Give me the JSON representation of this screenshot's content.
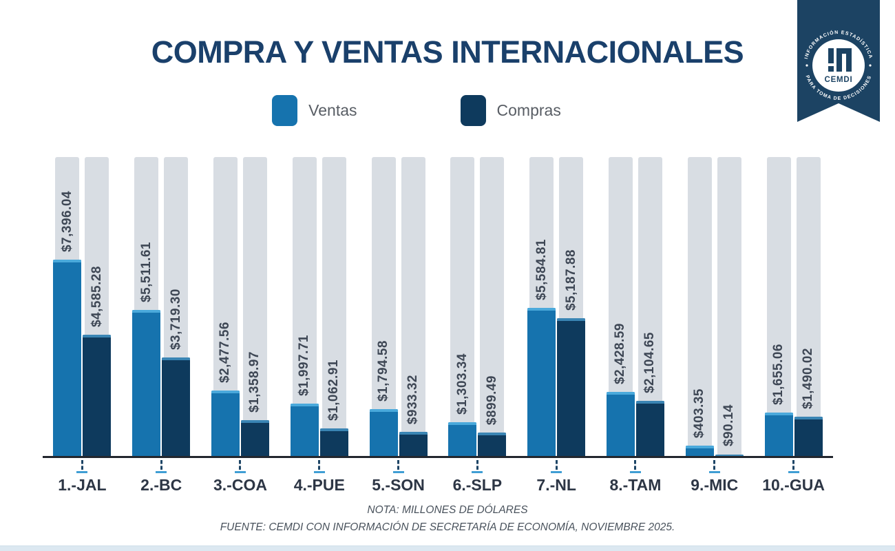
{
  "title": "COMPRA Y VENTAS INTERNACIONALES",
  "legend": {
    "items": [
      {
        "label": "Ventas",
        "color": "#1673ae"
      },
      {
        "label": "Compras",
        "color": "#0e3a5d"
      }
    ]
  },
  "badge": {
    "org": "CEMDI",
    "arc_top": "INFORMACIÓN ESTADÍSTICA",
    "arc_bottom": "PARA TOMA DE DECISIONES",
    "ribbon_color": "#1c4363"
  },
  "footer": {
    "note": "NOTA: MILLONES DE DÓLARES",
    "source": "FUENTE: CEMDI CON INFORMACIÓN DE SECRETARÍA DE ECONOMÍA, NOVIEMBRE 2025."
  },
  "colors": {
    "title": "#1a406b",
    "ventas": "#1673ae",
    "compras": "#0e3a5d",
    "track": "#d8dde3",
    "axis": "#23272e",
    "tick_accent": "#3f9ed4"
  },
  "chart_data": {
    "type": "bar",
    "title": "COMPRA Y VENTAS INTERNACIONALES",
    "unit": "MILLONES DE DÓLARES",
    "categories": [
      "1.-JAL",
      "2.-BC",
      "3.-COA",
      "4.-PUE",
      "5.-SON",
      "6.-SLP",
      "7.-NL",
      "8.-TAM",
      "9.-MIC",
      "10.-GUA"
    ],
    "series": [
      {
        "name": "Ventas",
        "color": "#1673ae",
        "values": [
          7396.04,
          5511.61,
          2477.56,
          1997.71,
          1794.58,
          1303.34,
          5584.81,
          2428.59,
          403.35,
          1655.06
        ],
        "labels": [
          "$7,396.04",
          "$5,511.61",
          "$2,477.56",
          "$1,997.71",
          "$1,794.58",
          "$1,303.34",
          "$5,584.81",
          "$2,428.59",
          "$403.35",
          "$1,655.06"
        ]
      },
      {
        "name": "Compras",
        "color": "#0e3a5d",
        "values": [
          4585.28,
          3719.3,
          1358.97,
          1062.91,
          933.32,
          899.49,
          5187.88,
          2104.65,
          90.14,
          1490.02
        ],
        "labels": [
          "$4,585.28",
          "$3,719.30",
          "$1,358.97",
          "$1,062.91",
          "$933.32",
          "$899.49",
          "$5,187.88",
          "$2,104.65",
          "$90.14",
          "$1,490.02"
        ]
      }
    ],
    "ylim": [
      0,
      11250
    ],
    "grid": false,
    "legend_position": "top",
    "value_labels": "rotated-90-above-bars",
    "background_tracks": true
  }
}
